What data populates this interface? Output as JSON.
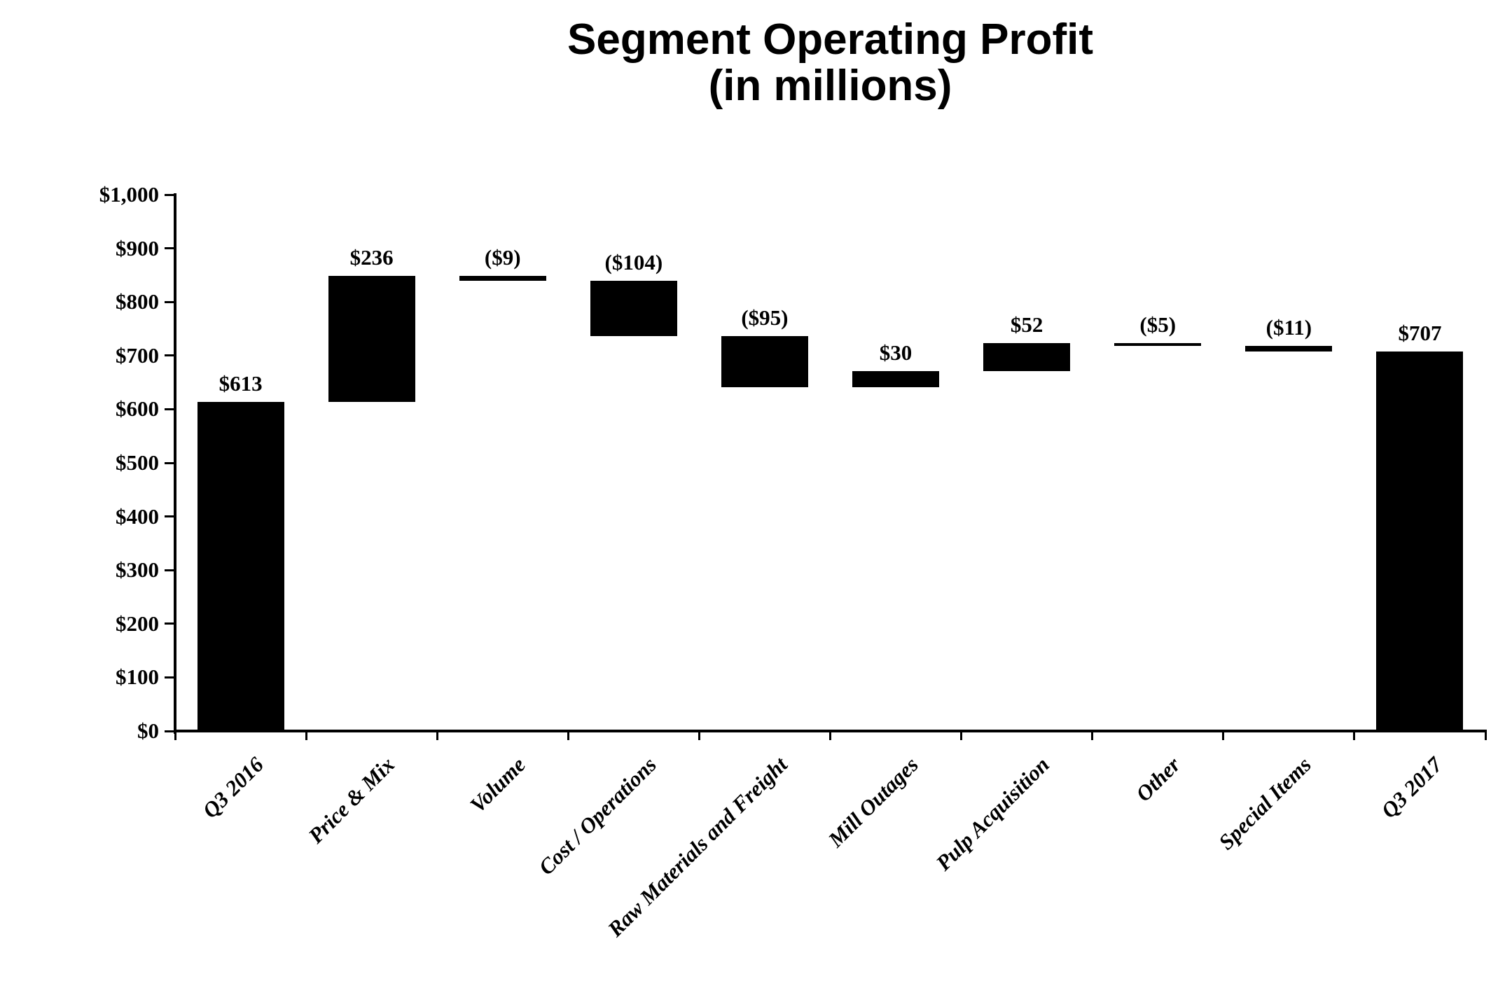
{
  "page": {
    "background": "#ffffff",
    "foreground": "#000000"
  },
  "chart_data": {
    "type": "bar",
    "subtype": "waterfall",
    "title": "Segment Operating Profit",
    "subtitle": "(in millions)",
    "xlabel": "",
    "ylabel": "",
    "ylim": [
      0,
      1000
    ],
    "ytick_step": 100,
    "y_tick_labels": [
      "$1,000",
      "$900",
      "$800",
      "$700",
      "$600",
      "$500",
      "$400",
      "$300",
      "$200",
      "$100",
      "$0"
    ],
    "grid": false,
    "legend": false,
    "bar_color": "#000000",
    "categories": [
      "Q3 2016",
      "Price & Mix",
      "Volume",
      "Cost / Operations",
      "Raw Materials and Freight",
      "Mill Outages",
      "Pulp Acquisition",
      "Other",
      "Special Items",
      "Q3 2017"
    ],
    "bars": [
      {
        "category": "Q3 2016",
        "value_label": "$613",
        "change": 613,
        "start": 0,
        "end": 613,
        "kind": "total"
      },
      {
        "category": "Price & Mix",
        "value_label": "$236",
        "change": 236,
        "start": 613,
        "end": 849,
        "kind": "increase"
      },
      {
        "category": "Volume",
        "value_label": "($9)",
        "change": -9,
        "start": 849,
        "end": 840,
        "kind": "decrease"
      },
      {
        "category": "Cost / Operations",
        "value_label": "($104)",
        "change": -104,
        "start": 840,
        "end": 736,
        "kind": "decrease"
      },
      {
        "category": "Raw Materials and Freight",
        "value_label": "($95)",
        "change": -95,
        "start": 736,
        "end": 641,
        "kind": "decrease"
      },
      {
        "category": "Mill Outages",
        "value_label": "$30",
        "change": 30,
        "start": 641,
        "end": 671,
        "kind": "increase"
      },
      {
        "category": "Pulp Acquisition",
        "value_label": "$52",
        "change": 52,
        "start": 671,
        "end": 723,
        "kind": "increase"
      },
      {
        "category": "Other",
        "value_label": "($5)",
        "change": -5,
        "start": 723,
        "end": 718,
        "kind": "decrease"
      },
      {
        "category": "Special Items",
        "value_label": "($11)",
        "change": -11,
        "start": 718,
        "end": 707,
        "kind": "decrease"
      },
      {
        "category": "Q3 2017",
        "value_label": "$707",
        "change": 707,
        "start": 0,
        "end": 707,
        "kind": "total"
      }
    ]
  }
}
